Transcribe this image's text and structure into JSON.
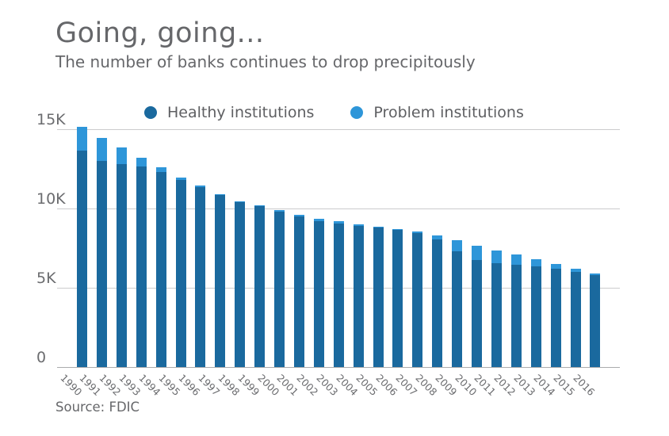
{
  "title": "Going, going...",
  "subtitle": "The number of banks continues to drop precipitously",
  "source": "Source: FDIC",
  "legend": {
    "healthy_label": "Healthy institutions",
    "problem_label": "Problem institutions"
  },
  "colors": {
    "healthy": "#1A699E",
    "problem": "#2E96D9",
    "grid": "#CBCBCD",
    "axis": "#AAABAD",
    "text_gray": "#66676A"
  },
  "chart_data": {
    "type": "bar",
    "stacked": true,
    "title": "Going, going...",
    "subtitle": "The number of banks continues to drop precipitously",
    "source": "Source: FDIC",
    "legend_position": "top",
    "grid": "horizontal",
    "xlabel": "",
    "ylabel": "",
    "ylim": [
      0,
      15000
    ],
    "y_tick_values": [
      0,
      5000,
      10000,
      15000
    ],
    "y_tick_labels": [
      "0",
      "5K",
      "10K",
      "15K"
    ],
    "categories": [
      "1990",
      "1991",
      "1992",
      "1993",
      "1994",
      "1995",
      "1996",
      "1997",
      "1998",
      "1999",
      "2000",
      "2001",
      "2002",
      "2003",
      "2004",
      "2005",
      "2006",
      "2007",
      "2008",
      "2009",
      "2010",
      "2011",
      "2012",
      "2013",
      "2014",
      "2015",
      "2016"
    ],
    "series": [
      {
        "name": "Healthy institutions",
        "color": "#1A699E",
        "values": [
          13662,
          13021,
          12786,
          12649,
          12286,
          11778,
          11335,
          10831,
          10379,
          10142,
          9810,
          9499,
          9218,
          9065,
          8896,
          8781,
          8630,
          8458,
          8053,
          7310,
          6773,
          6544,
          6432,
          6345,
          6180,
          5999,
          5790
        ]
      },
      {
        "name": "Problem institutions",
        "color": "#2E96D9",
        "values": [
          1496,
          1430,
          1066,
          572,
          318,
          193,
          117,
          92,
          84,
          79,
          94,
          114,
          136,
          116,
          80,
          52,
          50,
          76,
          252,
          702,
          884,
          813,
          651,
          467,
          329,
          183,
          123
        ]
      }
    ],
    "totals": [
      15158,
      14451,
      13852,
      13221,
      12604,
      11971,
      11452,
      10923,
      10463,
      10221,
      9904,
      9613,
      9354,
      9181,
      8976,
      8833,
      8680,
      8534,
      8305,
      8012,
      7657,
      7357,
      7083,
      6812,
      6509,
      6182,
      5913
    ]
  }
}
